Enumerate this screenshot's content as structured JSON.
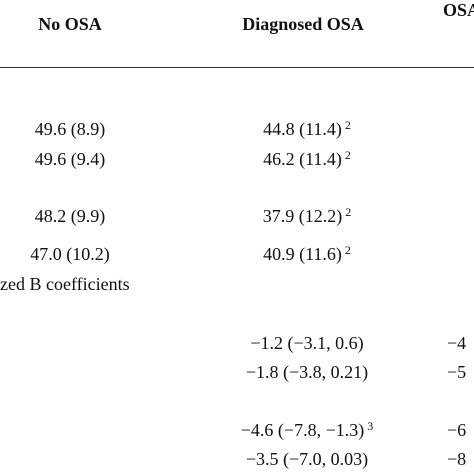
{
  "table": {
    "header": [
      "No OSA",
      "Diagnosed OSA",
      "OSA"
    ],
    "rows": [
      {
        "no_osa": "49.6 (8.9)",
        "diagnosed": "44.8 (11.4)",
        "diagnosed_sup": "2"
      },
      {
        "no_osa": "49.6 (9.4)",
        "diagnosed": "46.2 (11.4)",
        "diagnosed_sup": "2"
      },
      {
        "no_osa": "48.2 (9.9)",
        "diagnosed": "37.9 (12.2)",
        "diagnosed_sup": "2"
      },
      {
        "no_osa": "47.0 (10.2)",
        "diagnosed": "40.9 (11.6)",
        "diagnosed_sup": "2"
      }
    ],
    "section_label": "zed B coefficients",
    "coef_rows": [
      {
        "diagnosed": "−1.2 (−3.1, 0.6)",
        "osa": "−4"
      },
      {
        "diagnosed": "−1.8 (−3.8, 0.21)",
        "osa": "−5"
      },
      {
        "diagnosed": "−4.6 (−7.8, −1.3)",
        "diagnosed_sup": "3",
        "osa": "−6"
      },
      {
        "diagnosed": "−3.5 (−7.0, 0.03)",
        "osa": "−8"
      }
    ]
  }
}
